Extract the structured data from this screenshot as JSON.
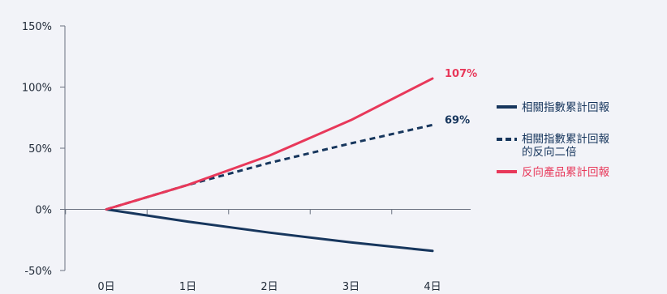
{
  "chart_data": {
    "type": "line",
    "x": [
      "0日",
      "1日",
      "2日",
      "3日",
      "4日"
    ],
    "ylim": [
      -50,
      150
    ],
    "yticks": [
      -50,
      0,
      50,
      100,
      150
    ],
    "ytick_labels": [
      "-50%",
      "0%",
      "50%",
      "100%",
      "150%"
    ],
    "grid": false,
    "legend_position": "right",
    "series": [
      {
        "key": "index",
        "name": [
          "相關指數累計回報"
        ],
        "values": [
          0,
          -10,
          -19,
          -27,
          -34
        ],
        "color": "#17365d",
        "style": "solid",
        "end_label": ""
      },
      {
        "key": "inverse2x",
        "name": [
          "相關指數累計回報",
          "的反向二倍"
        ],
        "values": [
          0,
          20,
          38,
          54,
          69
        ],
        "color": "#17365d",
        "style": "dashed",
        "end_label": "69%"
      },
      {
        "key": "product",
        "name": [
          "反向產品累計回報"
        ],
        "values": [
          0,
          20,
          44,
          73,
          107
        ],
        "color": "#e8385a",
        "style": "solid",
        "end_label": "107%"
      }
    ]
  }
}
